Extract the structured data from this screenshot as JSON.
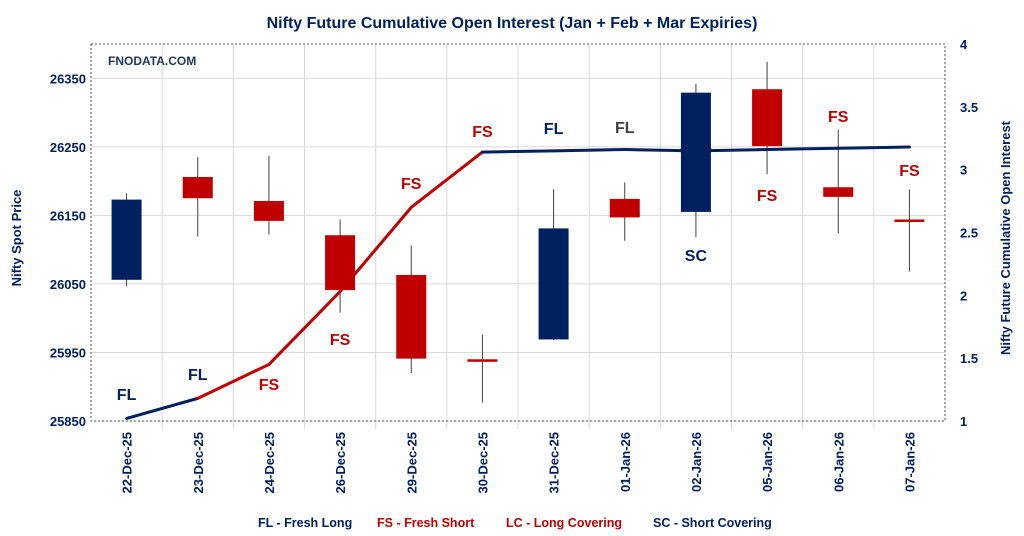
{
  "chart_data": {
    "type": "candlestick+line",
    "title": "Nifty Future Cumulative Open Interest (Jan  + Feb + Mar Expiries)",
    "watermark": "FNODATA.COM",
    "ylabel_left": "Nifty Spot Price",
    "ylabel_right": "Nifty Future Cumulative Open Interest",
    "ylim_left": [
      25850,
      26400
    ],
    "yticks_left": [
      "25850",
      "25950",
      "26050",
      "26150",
      "26250",
      "26350"
    ],
    "ylim_right": [
      1,
      4
    ],
    "yticks_right": [
      "1",
      "1.5",
      "2",
      "2.5",
      "3",
      "3.5",
      "4"
    ],
    "grid": true,
    "categories": [
      "22-Dec-25",
      "23-Dec-25",
      "24-Dec-25",
      "26-Dec-25",
      "29-Dec-25",
      "30-Dec-25",
      "31-Dec-25",
      "01-Jan-26",
      "02-Jan-26",
      "05-Jan-26",
      "06-Jan-26",
      "07-Jan-26"
    ],
    "candles": [
      {
        "open": 26056,
        "high": 26182,
        "low": 26047,
        "close": 26173
      },
      {
        "open": 26206,
        "high": 26235,
        "low": 26119,
        "close": 26175
      },
      {
        "open": 26171,
        "high": 26237,
        "low": 26122,
        "close": 26142
      },
      {
        "open": 26121,
        "high": 26144,
        "low": 26008,
        "close": 26041
      },
      {
        "open": 26063,
        "high": 26106,
        "low": 25920,
        "close": 25941
      },
      {
        "open": 25940,
        "high": 25976,
        "low": 25877,
        "close": 25939
      },
      {
        "open": 25969,
        "high": 26188,
        "low": 25968,
        "close": 26131
      },
      {
        "open": 26174,
        "high": 26198,
        "low": 26113,
        "close": 26147
      },
      {
        "open": 26155,
        "high": 26342,
        "low": 26118,
        "close": 26329
      },
      {
        "open": 26334,
        "high": 26374,
        "low": 26210,
        "close": 26251
      },
      {
        "open": 26191,
        "high": 26275,
        "low": 26124,
        "close": 26177
      },
      {
        "open": 26144,
        "high": 26188,
        "low": 26068,
        "close": 26142
      }
    ],
    "open_interest": [
      1.02,
      1.18,
      1.45,
      2.03,
      2.7,
      3.14,
      3.15,
      3.16,
      3.15,
      3.16,
      3.17,
      3.18
    ],
    "line_segment_colors": [
      "#002060",
      "#C00000",
      "#C00000",
      "#C00000",
      "#C00000",
      "#002060",
      "#002060",
      "#002060",
      "#002060",
      "#002060",
      "#002060"
    ],
    "annotations": [
      "FL",
      "FL",
      "FS",
      "FS",
      "FS",
      "FS",
      "FL",
      "FL",
      "SC",
      "FS",
      "FS",
      "FS"
    ],
    "annotation_colors": [
      "#002060",
      "#002060",
      "#C00000",
      "#C00000",
      "#C00000",
      "#C00000",
      "#002060",
      "#404040",
      "#002060",
      "#C00000",
      "#C00000",
      "#C00000"
    ],
    "up_color": "#002060",
    "down_color": "#C00000",
    "legend": [
      {
        "text": "FL - Fresh Long",
        "color": "#002060"
      },
      {
        "text": "FS - Fresh Short",
        "color": "#C00000"
      },
      {
        "text": "LC - Long Covering",
        "color": "#C00000"
      },
      {
        "text": "SC - Short Covering",
        "color": "#002060"
      }
    ]
  }
}
